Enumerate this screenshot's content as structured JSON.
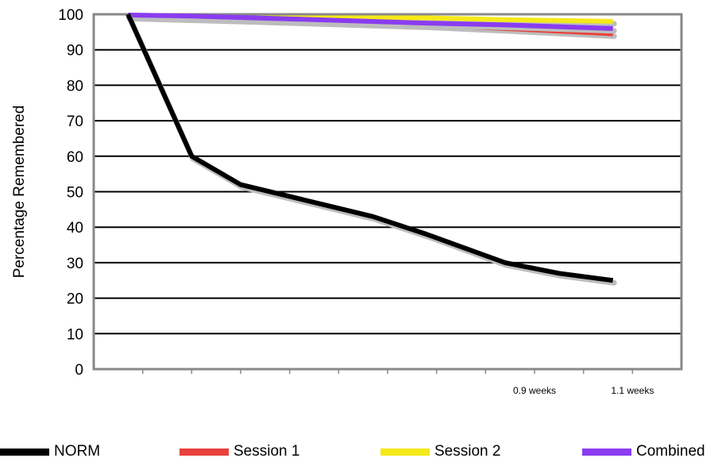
{
  "chart_data": {
    "type": "line",
    "ylabel": "Percentage Remembered",
    "ylim": [
      0,
      100
    ],
    "yticks": [
      0,
      10,
      20,
      30,
      40,
      50,
      60,
      70,
      80,
      90,
      100
    ],
    "xlim": [
      0,
      1.2
    ],
    "x_tick_labels": [
      {
        "x": 0.9,
        "label": "0.9 weeks"
      },
      {
        "x": 1.1,
        "label": "1.1 weeks"
      }
    ],
    "grid": true,
    "legend": "bottom",
    "series": [
      {
        "name": "NORM",
        "color": "#000000",
        "x": [
          0.07,
          0.2,
          0.3,
          0.45,
          0.57,
          0.68,
          0.84,
          0.95,
          1.06
        ],
        "y": [
          100,
          60,
          52,
          47,
          43,
          38,
          30,
          27,
          25
        ]
      },
      {
        "name": "Session 1",
        "color": "#e8413c",
        "x": [
          0.07,
          0.2,
          0.45,
          0.68,
          0.84,
          1.06
        ],
        "y": [
          99.5,
          99,
          98,
          97,
          96,
          94.5
        ]
      },
      {
        "name": "Session 2",
        "color": "#f5e91a",
        "x": [
          0.07,
          0.2,
          0.45,
          0.68,
          0.84,
          1.06
        ],
        "y": [
          99.5,
          99,
          99,
          99,
          98.5,
          98
        ]
      },
      {
        "name": "Combined",
        "color": "#8a3cf0",
        "x": [
          0.07,
          0.2,
          0.45,
          0.68,
          0.84,
          1.06
        ],
        "y": [
          99.8,
          99.5,
          98.5,
          97.5,
          97,
          96
        ]
      }
    ]
  }
}
